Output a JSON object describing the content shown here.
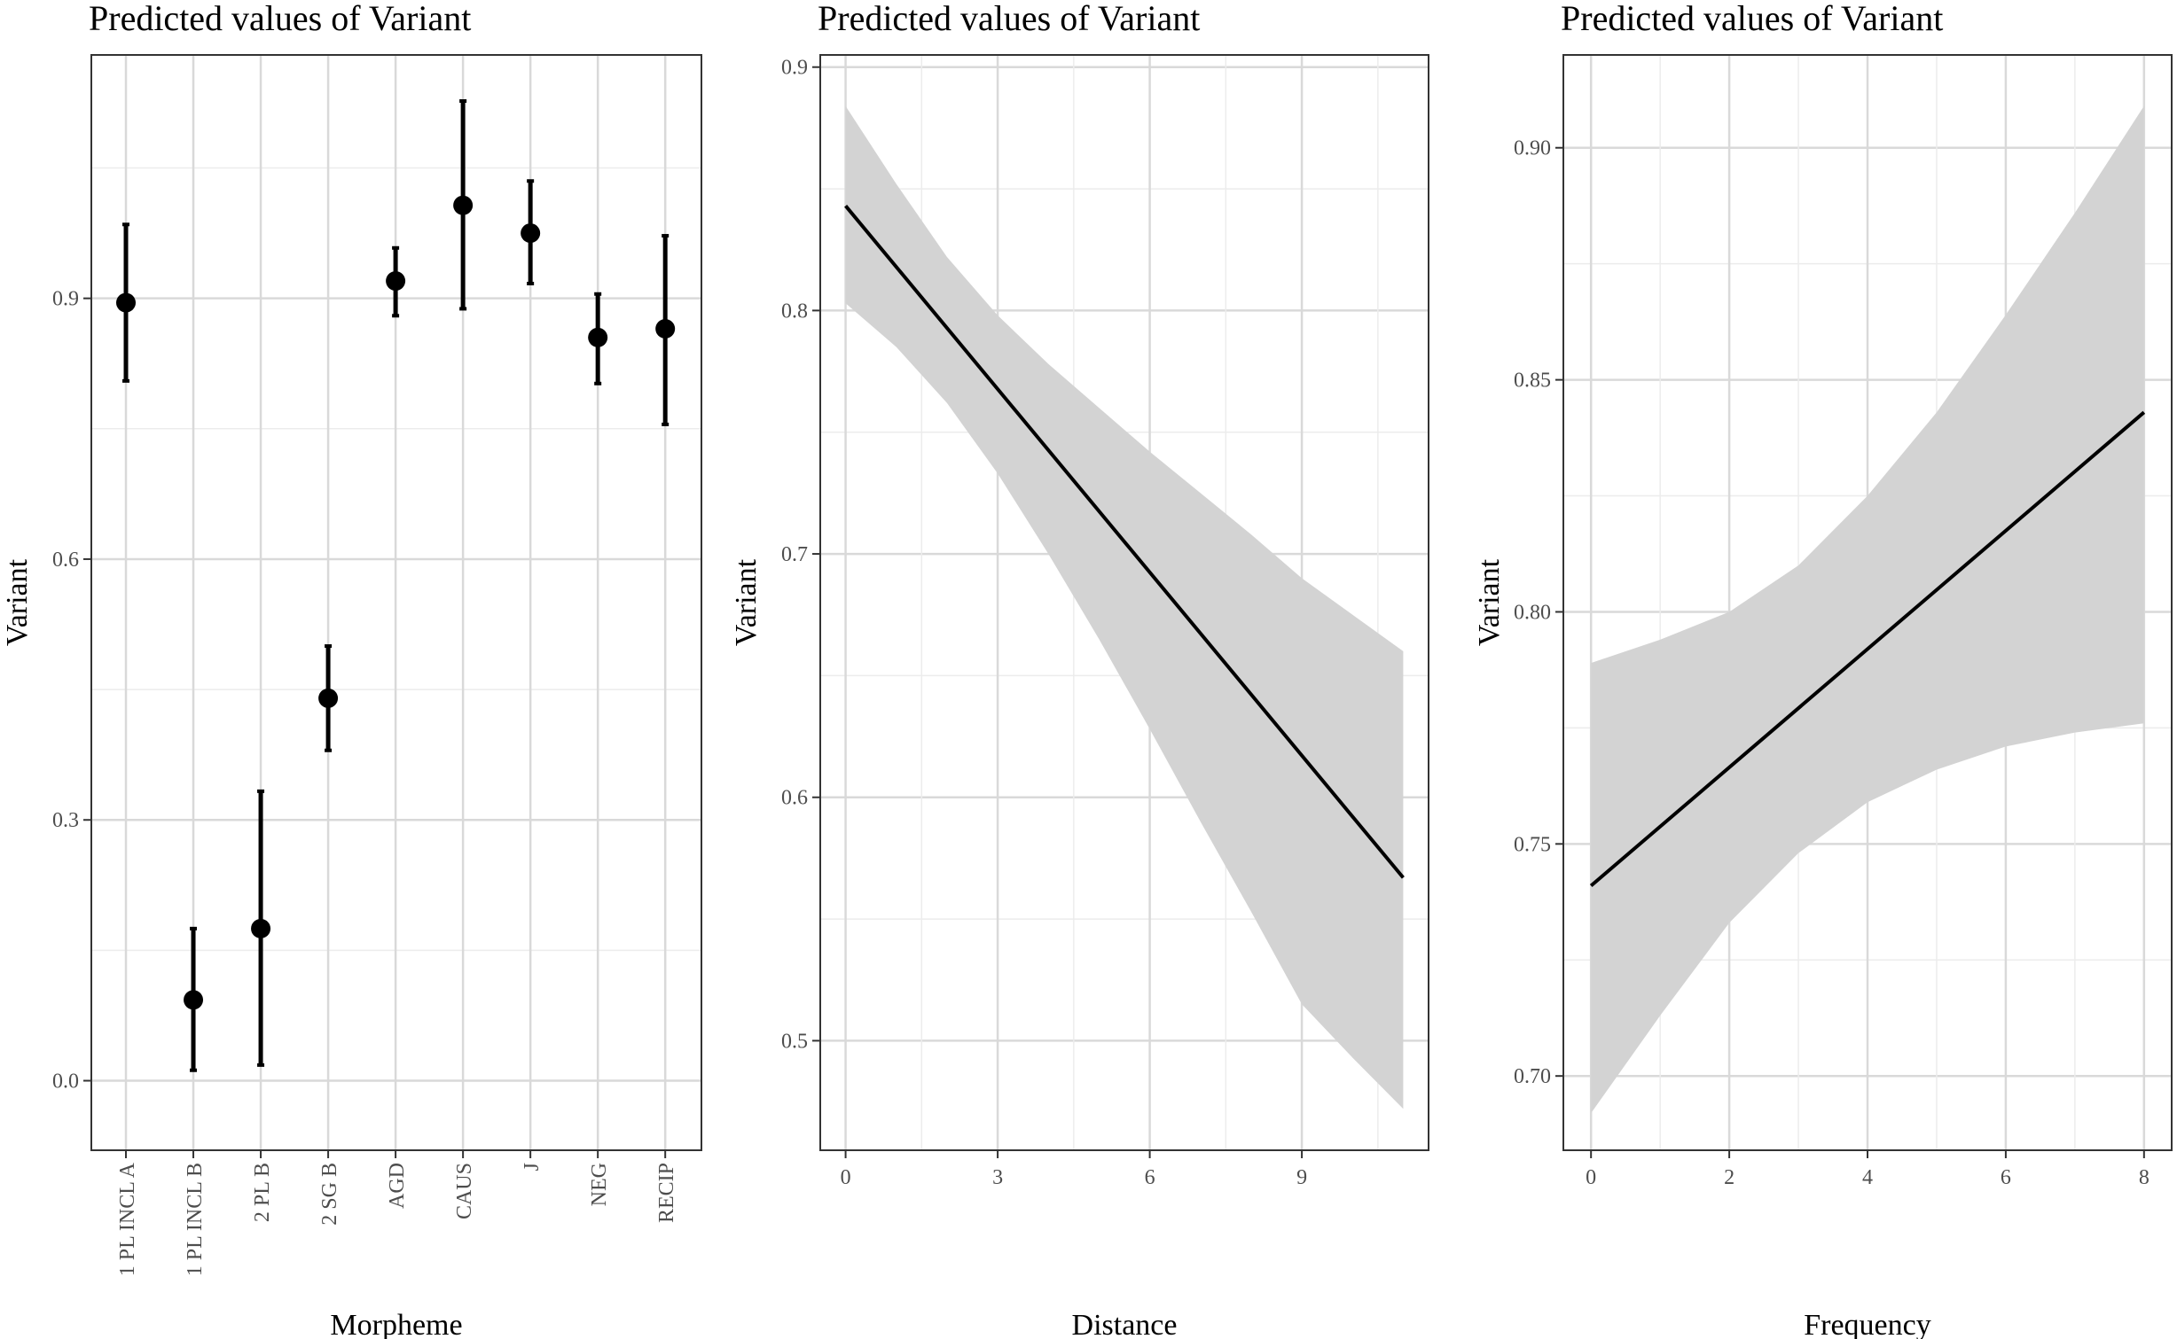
{
  "chart_data": [
    {
      "type": "scatter",
      "subtype": "point-errorbar",
      "title": "Predicted values of Variant",
      "xlabel": "Morpheme",
      "ylabel": "Variant",
      "ylim": [
        -0.08,
        1.18
      ],
      "yticks": [
        0.0,
        0.3,
        0.6,
        0.9
      ],
      "ytick_labels": [
        "0.0",
        "0.3",
        "0.6",
        "0.9"
      ],
      "categories": [
        "1 PL INCL A",
        "1 PL INCL B",
        "2 PL B",
        "2 SG B",
        "AGD",
        "CAUS",
        "J",
        "NEG",
        "RECIP"
      ],
      "values": [
        0.895,
        0.093,
        0.175,
        0.44,
        0.92,
        1.007,
        0.975,
        0.855,
        0.865
      ],
      "ci_low": [
        0.805,
        0.012,
        0.018,
        0.38,
        0.88,
        0.888,
        0.917,
        0.802,
        0.755
      ],
      "ci_high": [
        0.985,
        0.175,
        0.333,
        0.5,
        0.958,
        1.127,
        1.035,
        0.905,
        0.972
      ]
    },
    {
      "type": "line",
      "subtype": "line-with-confidence-band",
      "title": "Predicted values of Variant",
      "xlabel": "Distance",
      "ylabel": "Variant",
      "xlim": [
        -0.5,
        11.5
      ],
      "ylim": [
        0.455,
        0.905
      ],
      "xticks": [
        0,
        3,
        6,
        9
      ],
      "xtick_labels": [
        "0",
        "3",
        "6",
        "9"
      ],
      "yticks": [
        0.5,
        0.6,
        0.7,
        0.8,
        0.9
      ],
      "ytick_labels": [
        "0.5",
        "0.6",
        "0.7",
        "0.8",
        "0.9"
      ],
      "x": [
        0,
        11
      ],
      "y": [
        0.843,
        0.567
      ],
      "band_x": [
        0,
        1,
        2,
        3,
        4,
        5,
        6,
        7,
        8,
        9,
        10,
        11
      ],
      "band_low": [
        0.803,
        0.785,
        0.762,
        0.733,
        0.7,
        0.665,
        0.628,
        0.59,
        0.553,
        0.515,
        0.493,
        0.472
      ],
      "band_high": [
        0.884,
        0.852,
        0.822,
        0.798,
        0.778,
        0.76,
        0.742,
        0.725,
        0.708,
        0.69,
        0.675,
        0.66
      ]
    },
    {
      "type": "line",
      "subtype": "line-with-confidence-band",
      "title": "Predicted values of Variant",
      "xlabel": "Frequency",
      "ylabel": "Variant",
      "xlim": [
        -0.4,
        8.4
      ],
      "ylim": [
        0.684,
        0.92
      ],
      "xticks": [
        0,
        2,
        4,
        6,
        8
      ],
      "xtick_labels": [
        "0",
        "2",
        "4",
        "6",
        "8"
      ],
      "yticks": [
        0.7,
        0.75,
        0.8,
        0.85,
        0.9
      ],
      "ytick_labels": [
        "0.70",
        "0.75",
        "0.80",
        "0.85",
        "0.90"
      ],
      "x": [
        0,
        8
      ],
      "y": [
        0.741,
        0.843
      ],
      "band_x": [
        0,
        1,
        2,
        3,
        4,
        5,
        6,
        7,
        8
      ],
      "band_low": [
        0.692,
        0.713,
        0.733,
        0.748,
        0.759,
        0.766,
        0.771,
        0.774,
        0.776
      ],
      "band_high": [
        0.789,
        0.794,
        0.8,
        0.81,
        0.825,
        0.843,
        0.864,
        0.886,
        0.909
      ]
    }
  ]
}
